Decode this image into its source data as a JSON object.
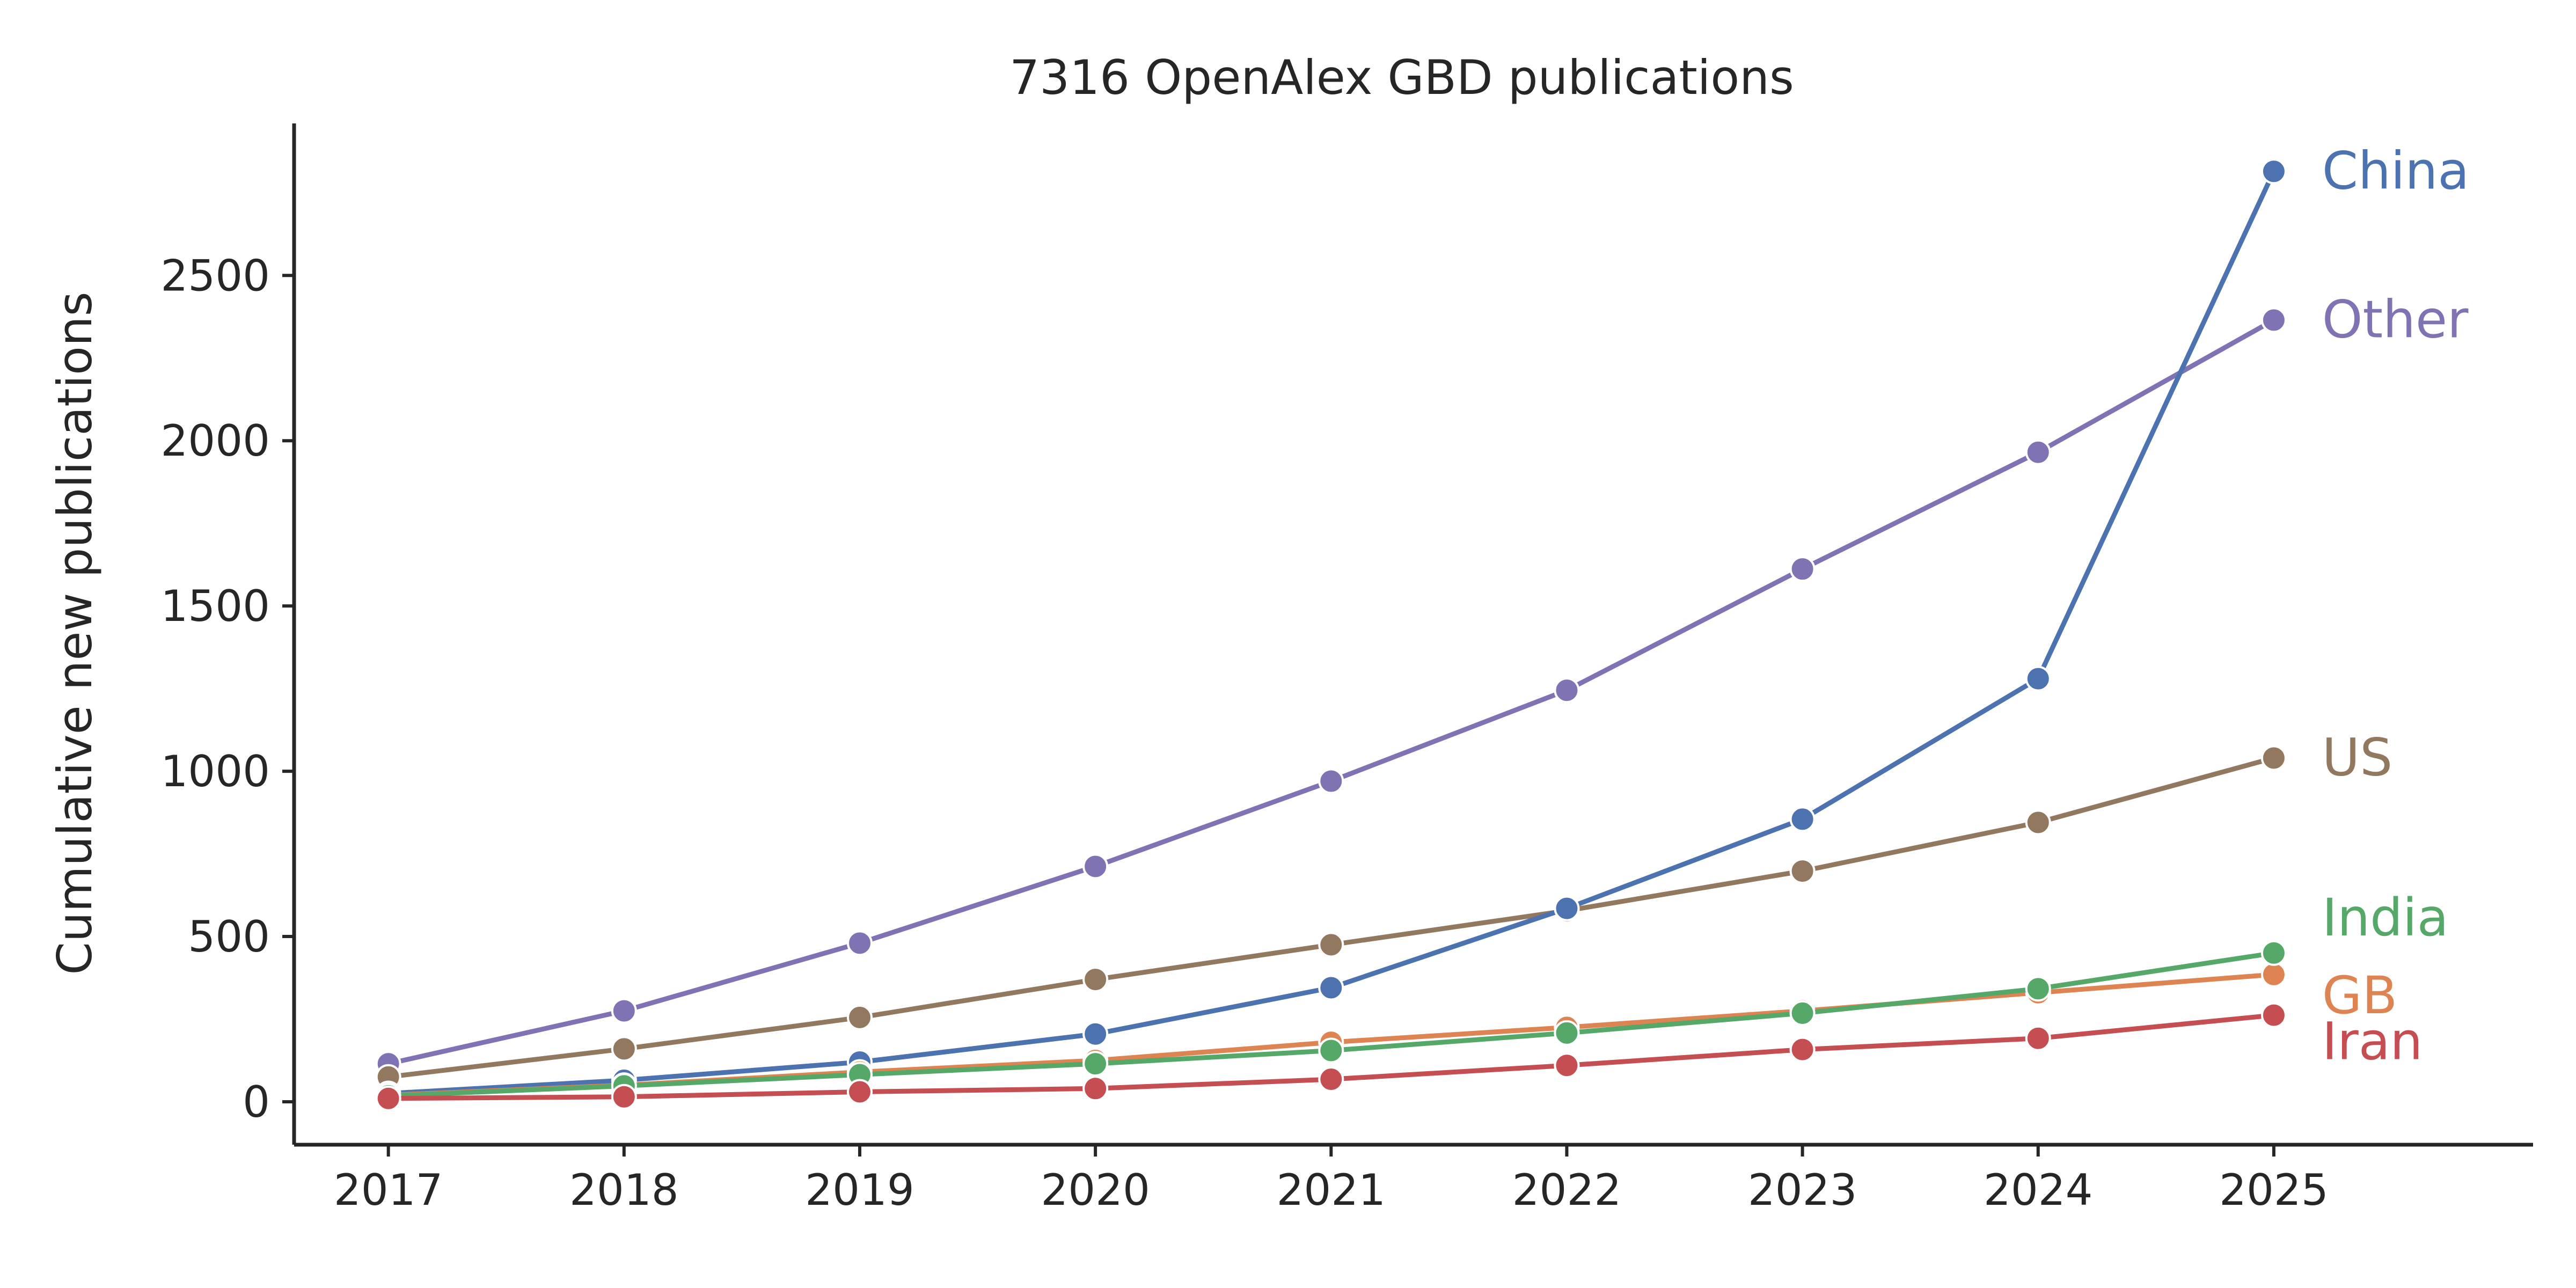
{
  "chart_data": {
    "type": "line",
    "title": "7316 OpenAlex GBD publications",
    "xlabel": "",
    "ylabel": "Cumulative new publications",
    "x": [
      2017,
      2018,
      2019,
      2020,
      2021,
      2022,
      2023,
      2024,
      2025
    ],
    "xlim": [
      2016.6,
      2026.1
    ],
    "ylim": [
      -130,
      2960
    ],
    "yticks": [
      0,
      500,
      1000,
      1500,
      2000,
      2500
    ],
    "grid": false,
    "legend": "none (direct labels at line ends)",
    "series": [
      {
        "name": "Other",
        "color": "#8172b3",
        "values": [
          115,
          275,
          480,
          712,
          970,
          1245,
          1612,
          1965,
          2365
        ]
      },
      {
        "name": "US",
        "color": "#937860",
        "values": [
          75,
          160,
          255,
          370,
          475,
          578,
          698,
          845,
          1040
        ]
      },
      {
        "name": "China",
        "color": "#4c72b0",
        "values": [
          25,
          65,
          120,
          205,
          345,
          585,
          855,
          1280,
          2815
        ]
      },
      {
        "name": "GB",
        "color": "#dd8452",
        "values": [
          20,
          50,
          90,
          125,
          180,
          225,
          275,
          330,
          385
        ]
      },
      {
        "name": "India",
        "color": "#55a868",
        "values": [
          18,
          48,
          82,
          115,
          155,
          208,
          268,
          342,
          450
        ]
      },
      {
        "name": "Iran",
        "color": "#c44e52",
        "values": [
          10,
          15,
          30,
          40,
          68,
          110,
          158,
          192,
          262
        ]
      }
    ]
  }
}
